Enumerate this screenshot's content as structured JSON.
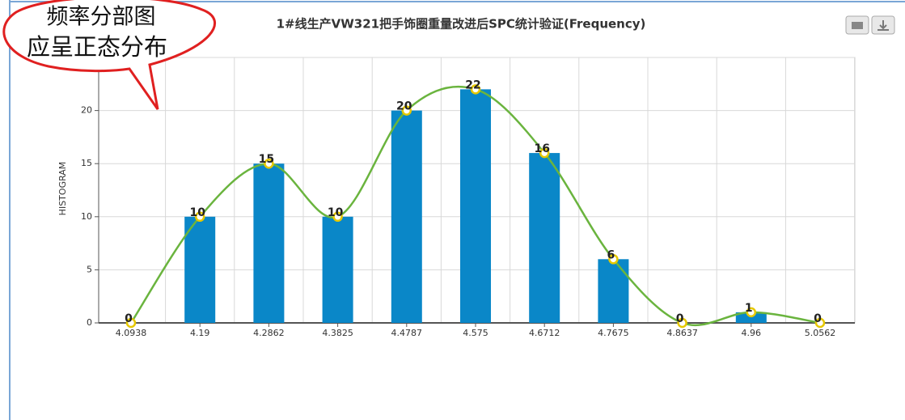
{
  "chart_data": {
    "type": "bar",
    "title": "1#线生产VW321把手饰圈重量改进后SPC统计验证(Frequency)",
    "y_label": "HISTOGRAM",
    "categories": [
      "4.0938",
      "4.19",
      "4.2862",
      "4.3825",
      "4.4787",
      "4.575",
      "4.6712",
      "4.7675",
      "4.8637",
      "4.96",
      "5.0562"
    ],
    "values": [
      0,
      10,
      15,
      10,
      20,
      22,
      16,
      6,
      0,
      1,
      0
    ],
    "bar_color": "#0a87c8",
    "line_color": "#6ab43e",
    "ylim": [
      0,
      25
    ],
    "yticks": [
      0,
      5,
      10,
      15,
      20,
      25
    ],
    "grid": true,
    "annotation": [
      "频率分部图",
      "应呈正态分布"
    ]
  }
}
